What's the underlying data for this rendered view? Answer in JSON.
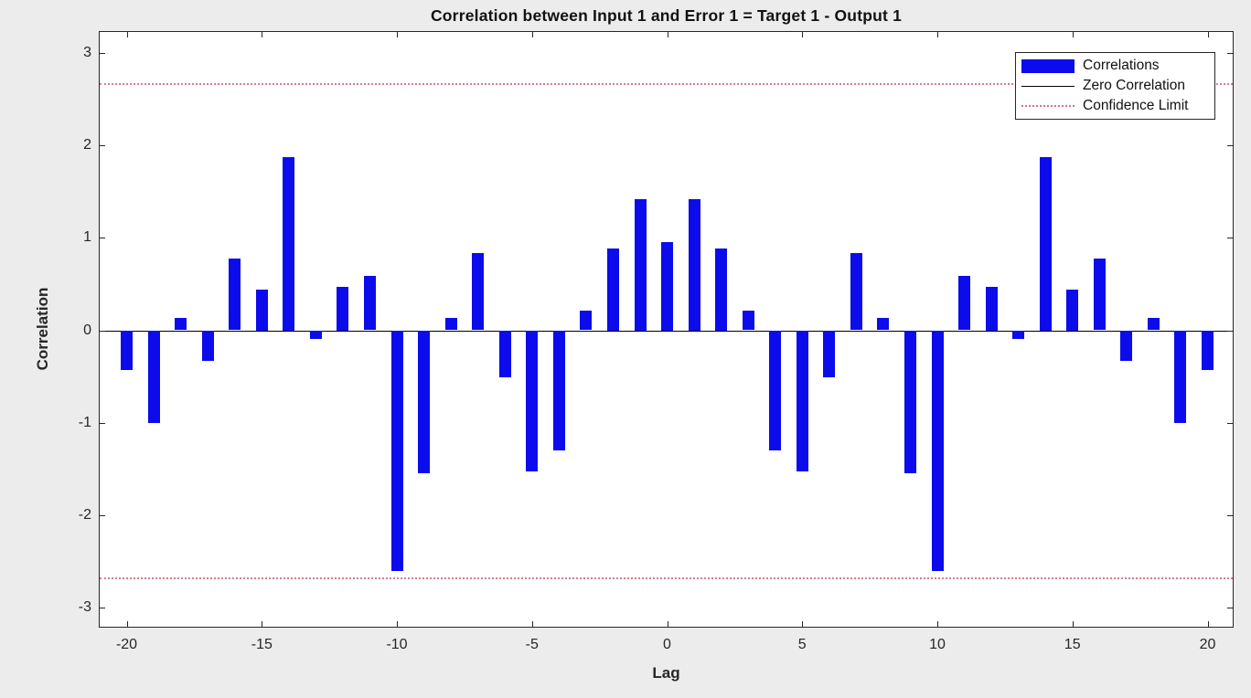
{
  "window": {
    "background": "#ececec"
  },
  "chart_data": {
    "type": "bar",
    "title": "Correlation between Input 1 and Error 1 = Target 1 - Output 1",
    "xlabel": "Lag",
    "ylabel": "Correlation",
    "xlim": [
      -21,
      21
    ],
    "ylim": [
      -3.23,
      3.23
    ],
    "xticks": [
      -20,
      -15,
      -10,
      -5,
      0,
      5,
      10,
      15,
      20
    ],
    "yticks": [
      -3,
      -2,
      -1,
      0,
      1,
      2,
      3
    ],
    "x": [
      -20,
      -19,
      -18,
      -17,
      -16,
      -15,
      -14,
      -13,
      -12,
      -11,
      -10,
      -9,
      -8,
      -7,
      -6,
      -5,
      -4,
      -3,
      -2,
      -1,
      0,
      1,
      2,
      3,
      4,
      5,
      6,
      7,
      8,
      9,
      10,
      11,
      12,
      13,
      14,
      15,
      16,
      17,
      18,
      19,
      20
    ],
    "values": [
      -0.43,
      -1.0,
      0.13,
      -0.33,
      0.78,
      0.44,
      1.88,
      -0.09,
      0.47,
      0.59,
      -2.61,
      -1.55,
      0.13,
      0.84,
      -0.51,
      -1.53,
      -1.3,
      0.21,
      0.89,
      1.42,
      0.96,
      1.42,
      0.89,
      0.21,
      -1.3,
      -1.53,
      -0.51,
      0.84,
      0.13,
      -1.55,
      -2.61,
      0.59,
      0.47,
      -0.09,
      1.88,
      0.44,
      0.78,
      -0.33,
      0.13,
      -1.0,
      -0.43
    ],
    "zero_line": 0,
    "confidence_limit": 2.68,
    "grid": false,
    "bar_color": "#0b0bec",
    "zero_line_color": "#000000",
    "confidence_color": "#c4556a",
    "legend": {
      "position": "top-right",
      "entries": [
        {
          "label": "Correlations",
          "type": "bar"
        },
        {
          "label": "Zero Correlation",
          "type": "line"
        },
        {
          "label": "Confidence Limit",
          "type": "dotted"
        }
      ]
    }
  }
}
